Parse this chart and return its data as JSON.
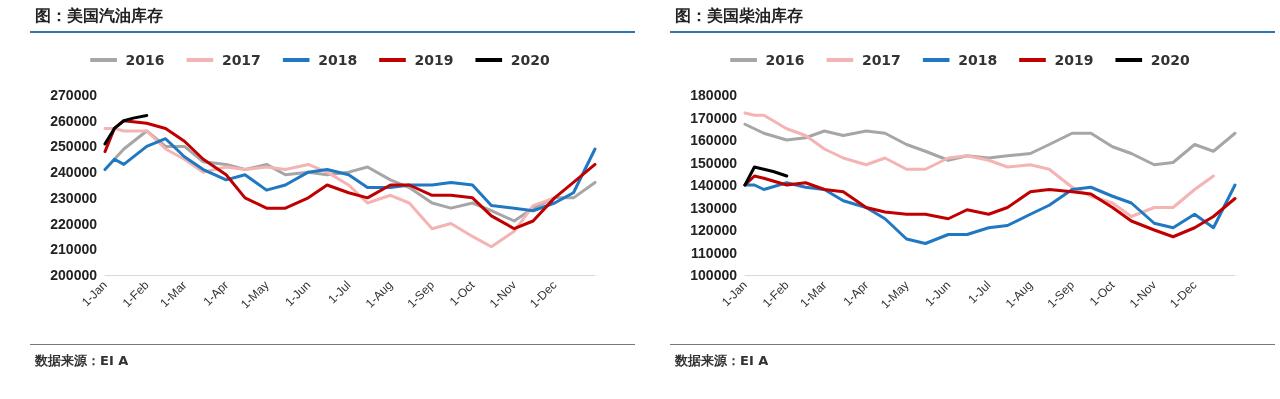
{
  "chart_data": [
    {
      "type": "line",
      "title": "图：美国汽油库存",
      "annotations": [
        "数据来源：EI A"
      ],
      "x": [
        "--01-01",
        "--01-08",
        "--01-15",
        "--02-01",
        "--02-15",
        "--03-01",
        "--03-15",
        "--04-01",
        "--04-15",
        "--05-01",
        "--05-15",
        "--06-01",
        "--06-15",
        "--07-01",
        "--07-15",
        "--08-01",
        "--08-15",
        "--09-01",
        "--09-15",
        "--10-01",
        "--10-15",
        "--11-01",
        "--11-15",
        "--12-01",
        "--12-15",
        "--12-31"
      ],
      "xlim": [
        "--01-01",
        "--12-31"
      ],
      "xticks": [
        {
          "value": "--01-01",
          "label": "1-Jan"
        },
        {
          "value": "--02-01",
          "label": "1-Feb"
        },
        {
          "value": "--03-01",
          "label": "1-Mar"
        },
        {
          "value": "--04-01",
          "label": "1-Apr"
        },
        {
          "value": "--05-01",
          "label": "1-May"
        },
        {
          "value": "--06-01",
          "label": "1-Jun"
        },
        {
          "value": "--07-01",
          "label": "1-Jul"
        },
        {
          "value": "--08-01",
          "label": "1-Aug"
        },
        {
          "value": "--09-01",
          "label": "1-Sep"
        },
        {
          "value": "--10-01",
          "label": "1-Oct"
        },
        {
          "value": "--11-01",
          "label": "1-Nov"
        },
        {
          "value": "--12-01",
          "label": "1-Dec"
        }
      ],
      "ylim": [
        200000,
        270000
      ],
      "yticks": [
        200000,
        210000,
        220000,
        230000,
        240000,
        250000,
        260000,
        270000
      ],
      "grid": false,
      "legend": "top",
      "marker": "none",
      "line_style": "solid",
      "series": [
        {
          "name": "2016",
          "color": "#a6a6a6",
          "values": [
            null,
            245000,
            249000,
            256000,
            250000,
            250000,
            244000,
            243000,
            241000,
            243000,
            239000,
            240000,
            239000,
            240000,
            242000,
            237000,
            234000,
            228000,
            226000,
            228000,
            225000,
            221000,
            226000,
            230000,
            230000,
            236000
          ]
        },
        {
          "name": "2017",
          "color": "#f4b4b4",
          "values": [
            257000,
            257000,
            256000,
            256000,
            249000,
            245000,
            240000,
            242000,
            241000,
            242000,
            241000,
            243000,
            240000,
            235000,
            228000,
            231000,
            228000,
            218000,
            220000,
            215000,
            211000,
            217000,
            227000,
            230000,
            null,
            null
          ]
        },
        {
          "name": "2018",
          "color": "#1f78c1",
          "values": [
            241000,
            245000,
            243000,
            250000,
            253000,
            246000,
            241000,
            237000,
            239000,
            233000,
            235000,
            240000,
            241000,
            239000,
            234000,
            234000,
            235000,
            235000,
            236000,
            235000,
            227000,
            226000,
            225000,
            228000,
            232000,
            249000
          ]
        },
        {
          "name": "2019",
          "color": "#c00000",
          "values": [
            248000,
            257000,
            260000,
            259000,
            257000,
            252000,
            245000,
            239000,
            230000,
            226000,
            226000,
            230000,
            235000,
            232000,
            230000,
            235000,
            235000,
            231000,
            231000,
            230000,
            223000,
            218000,
            221000,
            230000,
            236000,
            243000
          ]
        },
        {
          "name": "2020",
          "color": "#000000",
          "x": [
            "--01-01",
            "--01-08",
            "--01-15",
            "--01-22",
            "--02-01"
          ],
          "values": [
            251000,
            257000,
            260000,
            261000,
            262000
          ]
        }
      ]
    },
    {
      "type": "line",
      "title": "图：美国柴油库存",
      "annotations": [
        "数据来源：EI A"
      ],
      "x": [
        "--01-01",
        "--01-08",
        "--01-15",
        "--02-01",
        "--02-15",
        "--03-01",
        "--03-15",
        "--04-01",
        "--04-15",
        "--05-01",
        "--05-15",
        "--06-01",
        "--06-15",
        "--07-01",
        "--07-15",
        "--08-01",
        "--08-15",
        "--09-01",
        "--09-15",
        "--10-01",
        "--10-15",
        "--11-01",
        "--11-15",
        "--12-01",
        "--12-15",
        "--12-31"
      ],
      "xlim": [
        "--01-01",
        "--12-31"
      ],
      "xticks": [
        {
          "value": "--01-01",
          "label": "1-Jan"
        },
        {
          "value": "--02-01",
          "label": "1-Feb"
        },
        {
          "value": "--03-01",
          "label": "1-Mar"
        },
        {
          "value": "--04-01",
          "label": "1-Apr"
        },
        {
          "value": "--05-01",
          "label": "1-May"
        },
        {
          "value": "--06-01",
          "label": "1-Jun"
        },
        {
          "value": "--07-01",
          "label": "1-Jul"
        },
        {
          "value": "--08-01",
          "label": "1-Aug"
        },
        {
          "value": "--09-01",
          "label": "1-Sep"
        },
        {
          "value": "--10-01",
          "label": "1-Oct"
        },
        {
          "value": "--11-01",
          "label": "1-Nov"
        },
        {
          "value": "--12-01",
          "label": "1-Dec"
        }
      ],
      "ylim": [
        100000,
        180000
      ],
      "yticks": [
        100000,
        110000,
        120000,
        130000,
        140000,
        150000,
        160000,
        170000,
        180000
      ],
      "grid": false,
      "legend": "top",
      "marker": "none",
      "line_style": "solid",
      "series": [
        {
          "name": "2016",
          "color": "#a6a6a6",
          "values": [
            167000,
            165000,
            163000,
            160000,
            161000,
            164000,
            162000,
            164000,
            163000,
            158000,
            155000,
            151000,
            153000,
            152000,
            153000,
            154000,
            158000,
            163000,
            163000,
            157000,
            154000,
            149000,
            150000,
            158000,
            155000,
            163000
          ]
        },
        {
          "name": "2017",
          "color": "#f4b4b4",
          "values": [
            172000,
            171000,
            171000,
            165000,
            162000,
            156000,
            152000,
            149000,
            152000,
            147000,
            147000,
            152000,
            153000,
            151000,
            148000,
            149000,
            147000,
            139000,
            135000,
            132000,
            126000,
            130000,
            130000,
            138000,
            144000,
            null
          ]
        },
        {
          "name": "2018",
          "color": "#1f78c1",
          "values": [
            140000,
            140000,
            138000,
            141000,
            139000,
            138000,
            133000,
            130000,
            125000,
            116000,
            114000,
            118000,
            118000,
            121000,
            122000,
            127000,
            131000,
            138000,
            139000,
            135000,
            132000,
            123000,
            121000,
            127000,
            121000,
            140000
          ]
        },
        {
          "name": "2019",
          "color": "#c00000",
          "values": [
            140000,
            144000,
            143000,
            140000,
            141000,
            138000,
            137000,
            130000,
            128000,
            127000,
            127000,
            125000,
            129000,
            127000,
            130000,
            137000,
            138000,
            137000,
            136000,
            130000,
            124000,
            120000,
            117000,
            121000,
            126000,
            134000
          ]
        },
        {
          "name": "2020",
          "color": "#000000",
          "x": [
            "--01-01",
            "--01-08",
            "--01-15",
            "--01-22",
            "--02-01"
          ],
          "values": [
            140000,
            148000,
            147000,
            146000,
            144000
          ]
        }
      ]
    }
  ]
}
